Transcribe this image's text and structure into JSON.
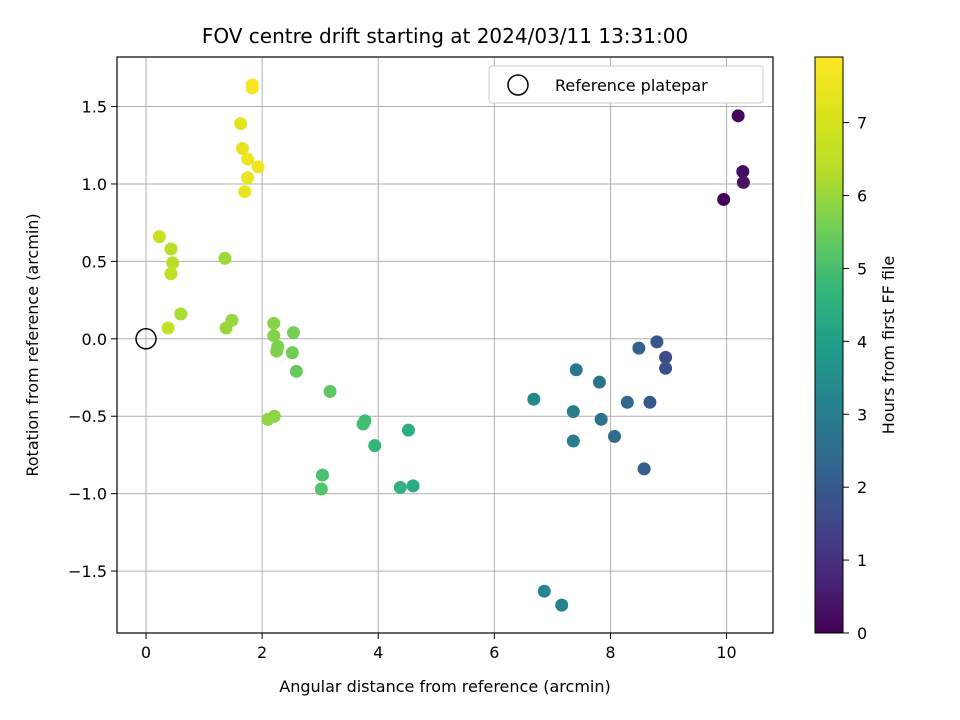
{
  "chart_data": {
    "type": "scatter",
    "title": "FOV centre drift starting at 2024/03/11 13:31:00",
    "xlabel": "Angular distance from reference (arcmin)",
    "ylabel": "Rotation from reference (arcmin)",
    "xlim": [
      -0.5,
      10.8
    ],
    "ylim": [
      -1.9,
      1.82
    ],
    "x_ticks": [
      0,
      2,
      4,
      6,
      8,
      10
    ],
    "x_tick_labels": [
      "0",
      "2",
      "4",
      "6",
      "8",
      "10"
    ],
    "y_ticks": [
      -1.5,
      -1.0,
      -0.5,
      0.0,
      0.5,
      1.0,
      1.5
    ],
    "y_tick_labels": [
      "−1.5",
      "−1.0",
      "−0.5",
      "0.0",
      "0.5",
      "1.0",
      "1.5"
    ],
    "grid": true,
    "legend": {
      "location": "top-right",
      "label": "Reference platepar"
    },
    "reference_point": {
      "x": 0.0,
      "y": 0.0
    },
    "colorbar": {
      "label": "Hours from first FF file",
      "colormap": "viridis",
      "range": [
        0,
        7.9
      ],
      "ticks": [
        0,
        1,
        2,
        3,
        4,
        5,
        6,
        7
      ],
      "tick_labels": [
        "0",
        "1",
        "2",
        "3",
        "4",
        "5",
        "6",
        "7"
      ]
    },
    "points": [
      {
        "x": 9.95,
        "y": 0.9,
        "c": 0.05
      },
      {
        "x": 10.2,
        "y": 1.44,
        "c": 0.15
      },
      {
        "x": 10.28,
        "y": 1.08,
        "c": 0.25
      },
      {
        "x": 10.29,
        "y": 1.01,
        "c": 0.35
      },
      {
        "x": 8.95,
        "y": -0.12,
        "c": 1.6
      },
      {
        "x": 8.95,
        "y": -0.19,
        "c": 1.75
      },
      {
        "x": 8.8,
        "y": -0.02,
        "c": 1.9
      },
      {
        "x": 8.68,
        "y": -0.41,
        "c": 2.0
      },
      {
        "x": 8.58,
        "y": -0.84,
        "c": 2.1
      },
      {
        "x": 8.49,
        "y": -0.06,
        "c": 2.2
      },
      {
        "x": 8.29,
        "y": -0.41,
        "c": 2.35
      },
      {
        "x": 8.07,
        "y": -0.63,
        "c": 2.5
      },
      {
        "x": 7.84,
        "y": -0.52,
        "c": 2.6
      },
      {
        "x": 7.81,
        "y": -0.28,
        "c": 2.7
      },
      {
        "x": 7.41,
        "y": -0.2,
        "c": 2.85
      },
      {
        "x": 7.36,
        "y": -0.47,
        "c": 2.95
      },
      {
        "x": 7.36,
        "y": -0.66,
        "c": 3.05
      },
      {
        "x": 7.16,
        "y": -1.72,
        "c": 3.2
      },
      {
        "x": 6.86,
        "y": -1.63,
        "c": 3.3
      },
      {
        "x": 6.68,
        "y": -0.39,
        "c": 3.4
      },
      {
        "x": 4.6,
        "y": -0.95,
        "c": 4.35
      },
      {
        "x": 4.52,
        "y": -0.59,
        "c": 4.45
      },
      {
        "x": 4.38,
        "y": -0.96,
        "c": 4.55
      },
      {
        "x": 3.94,
        "y": -0.69,
        "c": 4.75
      },
      {
        "x": 3.77,
        "y": -0.53,
        "c": 4.85
      },
      {
        "x": 3.74,
        "y": -0.55,
        "c": 4.95
      },
      {
        "x": 3.04,
        "y": -0.88,
        "c": 5.05
      },
      {
        "x": 3.02,
        "y": -0.97,
        "c": 5.15
      },
      {
        "x": 3.17,
        "y": -0.34,
        "c": 5.3
      },
      {
        "x": 2.59,
        "y": -0.21,
        "c": 5.4
      },
      {
        "x": 2.52,
        "y": -0.09,
        "c": 5.5
      },
      {
        "x": 2.54,
        "y": 0.04,
        "c": 5.6
      },
      {
        "x": 2.27,
        "y": -0.05,
        "c": 5.65
      },
      {
        "x": 2.25,
        "y": -0.08,
        "c": 5.7
      },
      {
        "x": 2.2,
        "y": 0.02,
        "c": 5.75
      },
      {
        "x": 2.2,
        "y": 0.1,
        "c": 5.8
      },
      {
        "x": 2.21,
        "y": -0.5,
        "c": 5.85
      },
      {
        "x": 2.1,
        "y": -0.52,
        "c": 5.9
      },
      {
        "x": 1.48,
        "y": 0.12,
        "c": 5.95
      },
      {
        "x": 1.38,
        "y": 0.07,
        "c": 6.0
      },
      {
        "x": 1.36,
        "y": 0.52,
        "c": 6.05
      },
      {
        "x": 0.6,
        "y": 0.16,
        "c": 6.2
      },
      {
        "x": 0.46,
        "y": 0.49,
        "c": 6.35
      },
      {
        "x": 0.43,
        "y": 0.58,
        "c": 6.45
      },
      {
        "x": 0.43,
        "y": 0.42,
        "c": 6.55
      },
      {
        "x": 0.38,
        "y": 0.07,
        "c": 6.65
      },
      {
        "x": 0.23,
        "y": 0.66,
        "c": 6.75
      },
      {
        "x": 1.63,
        "y": 1.39,
        "c": 7.3
      },
      {
        "x": 1.66,
        "y": 1.23,
        "c": 7.4
      },
      {
        "x": 1.7,
        "y": 0.95,
        "c": 7.45
      },
      {
        "x": 1.75,
        "y": 1.04,
        "c": 7.5
      },
      {
        "x": 1.75,
        "y": 1.16,
        "c": 7.55
      },
      {
        "x": 1.93,
        "y": 1.11,
        "c": 7.6
      },
      {
        "x": 1.83,
        "y": 1.62,
        "c": 7.7
      },
      {
        "x": 1.83,
        "y": 1.64,
        "c": 7.8
      }
    ]
  }
}
